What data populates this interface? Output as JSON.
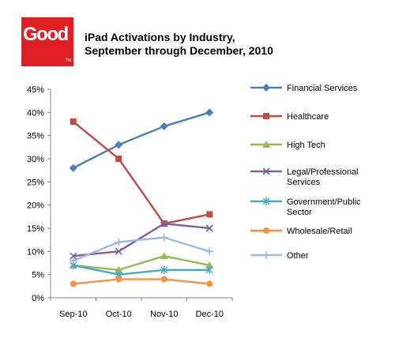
{
  "header": {
    "logo_text": "Good",
    "logo_tm": "TM",
    "title_line1": "iPad Activations by Industry,",
    "title_line2": "September through December, 2010"
  },
  "colors": {
    "logo": "#e21e25",
    "axis": "#868686"
  },
  "chart_data": {
    "type": "line",
    "title": "iPad Activations by Industry, September through December, 2010",
    "x": [
      "Sep-10",
      "Oct-10",
      "Nov-10",
      "Dec-10"
    ],
    "ylim": [
      0,
      45
    ],
    "yticks": [
      "0%",
      "5%",
      "10%",
      "15%",
      "20%",
      "25%",
      "30%",
      "35%",
      "40%",
      "45%"
    ],
    "ytick_values": [
      0,
      5,
      10,
      15,
      20,
      25,
      30,
      35,
      40,
      45
    ],
    "grid": false,
    "legend": "right",
    "series": [
      {
        "name": "Financial Services",
        "label_lines": [
          "Financial Services"
        ],
        "values": [
          28,
          33,
          37,
          40
        ],
        "color": "#4a7ebb",
        "marker": "diamond"
      },
      {
        "name": "Healthcare",
        "label_lines": [
          "Healthcare"
        ],
        "values": [
          38,
          30,
          16,
          18
        ],
        "color": "#be4b48",
        "marker": "square"
      },
      {
        "name": "High Tech",
        "label_lines": [
          "High Tech"
        ],
        "values": [
          7,
          6,
          9,
          7
        ],
        "color": "#98b954",
        "marker": "triangle"
      },
      {
        "name": "Legal/Professional Services",
        "label_lines": [
          "Legal/Professional",
          "Services"
        ],
        "values": [
          9,
          10,
          16,
          15
        ],
        "color": "#7d60a0",
        "marker": "x"
      },
      {
        "name": "Government/Public Sector",
        "label_lines": [
          "Government/Public",
          "Sector"
        ],
        "values": [
          7,
          5,
          6,
          6
        ],
        "color": "#46aac5",
        "marker": "star"
      },
      {
        "name": "Wholesale/Retail",
        "label_lines": [
          "Wholesale/Retail"
        ],
        "values": [
          3,
          4,
          4,
          3
        ],
        "color": "#f69240",
        "marker": "circle"
      },
      {
        "name": "Other",
        "label_lines": [
          "Other"
        ],
        "values": [
          8,
          12,
          13,
          10
        ],
        "color": "#9db9e1",
        "marker": "plus"
      }
    ]
  }
}
